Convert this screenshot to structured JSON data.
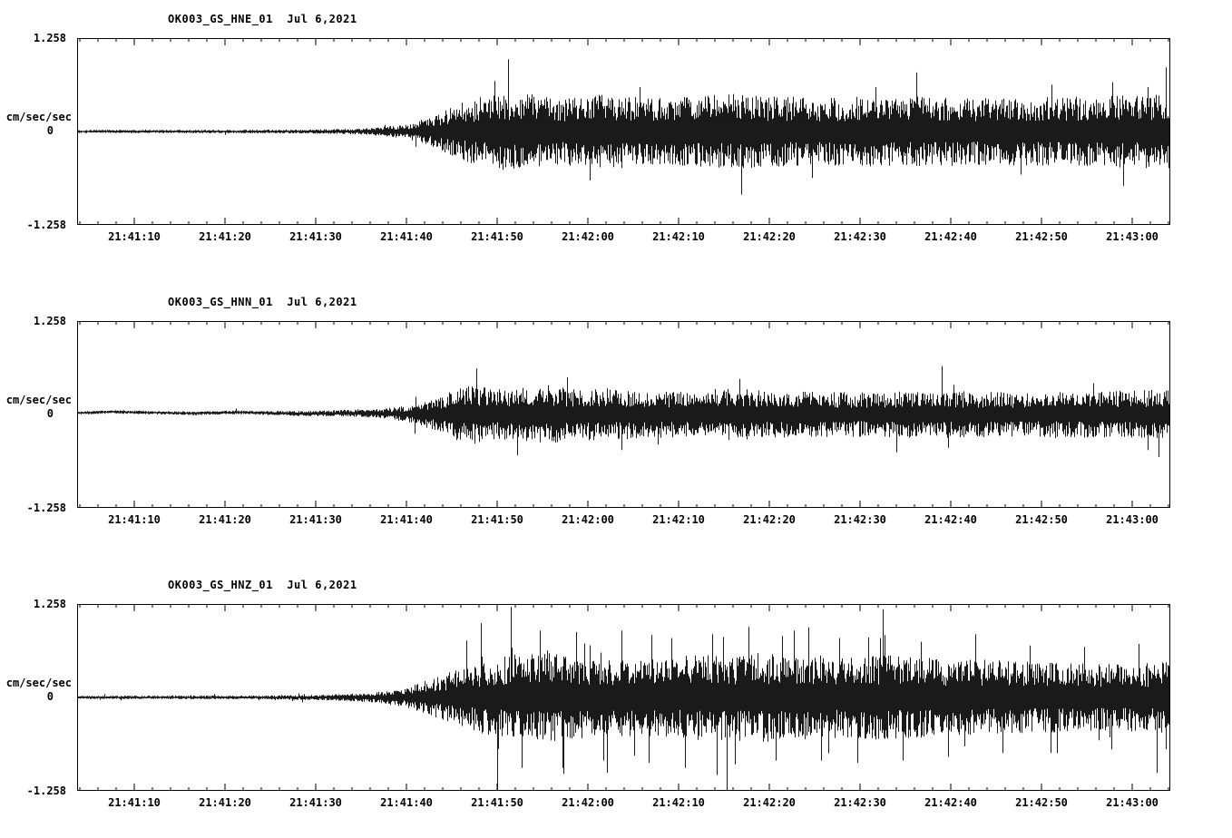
{
  "page": {
    "background": "#ffffff",
    "trace_color": "#000000",
    "frame_color": "#000000"
  },
  "chart_data": [
    {
      "type": "line",
      "title": "OK003_GS_HNE_01  Jul 6,2021",
      "station": "OK003",
      "network": "GS",
      "channel": "HNE",
      "date": "Jul 6,2021",
      "ylabel": "cm/sec/sec",
      "ylim": [
        -1.258,
        1.258
      ],
      "ytick_labels": [
        "1.258",
        "0",
        "-1.258"
      ],
      "x_span_seconds": 120.5,
      "xtick_labels": [
        "21:41:10",
        "21:41:20",
        "21:41:30",
        "21:41:40",
        "21:41:50",
        "21:42:00",
        "21:42:10",
        "21:42:20",
        "21:42:30",
        "21:42:40",
        "21:42:50",
        "21:43:00"
      ],
      "xtick_times_s": [
        6.3,
        16.3,
        26.3,
        36.3,
        46.3,
        56.3,
        66.3,
        76.3,
        86.3,
        96.3,
        106.3,
        116.3
      ],
      "minor_tick_interval_s": 2,
      "grid": false,
      "legend": "none",
      "envelope": [
        [
          0,
          0.022
        ],
        [
          25,
          0.025
        ],
        [
          32,
          0.045
        ],
        [
          36,
          0.09
        ],
        [
          39,
          0.2
        ],
        [
          42,
          0.38
        ],
        [
          45,
          0.48
        ],
        [
          49,
          0.52
        ],
        [
          53,
          0.45
        ],
        [
          58,
          0.5
        ],
        [
          63,
          0.45
        ],
        [
          68,
          0.48
        ],
        [
          72,
          0.52
        ],
        [
          75,
          0.48
        ],
        [
          82,
          0.46
        ],
        [
          90,
          0.48
        ],
        [
          100,
          0.45
        ],
        [
          110,
          0.47
        ],
        [
          120.5,
          0.5
        ]
      ],
      "spikes": [
        [
          46,
          0.68
        ],
        [
          56.5,
          0.66
        ],
        [
          62,
          0.6
        ],
        [
          73.2,
          0.85
        ],
        [
          88,
          0.6
        ],
        [
          104,
          0.58
        ],
        [
          118,
          0.6
        ]
      ],
      "drift": [
        [
          0,
          0
        ],
        [
          120.5,
          0
        ]
      ],
      "spike_prob": 0.012,
      "seed": 101
    },
    {
      "type": "line",
      "title": "OK003_GS_HNN_01  Jul 6,2021",
      "station": "OK003",
      "network": "GS",
      "channel": "HNN",
      "date": "Jul 6,2021",
      "ylabel": "cm/sec/sec",
      "ylim": [
        -1.258,
        1.258
      ],
      "ytick_labels": [
        "1.258",
        "0",
        "-1.258"
      ],
      "x_span_seconds": 120.5,
      "xtick_labels": [
        "21:41:10",
        "21:41:20",
        "21:41:30",
        "21:41:40",
        "21:41:50",
        "21:42:00",
        "21:42:10",
        "21:42:20",
        "21:42:30",
        "21:42:40",
        "21:42:50",
        "21:43:00"
      ],
      "xtick_times_s": [
        6.3,
        16.3,
        26.3,
        36.3,
        46.3,
        56.3,
        66.3,
        76.3,
        86.3,
        96.3,
        106.3,
        116.3
      ],
      "minor_tick_interval_s": 2,
      "grid": false,
      "legend": "none",
      "envelope": [
        [
          0,
          0.022
        ],
        [
          18,
          0.025
        ],
        [
          28,
          0.04
        ],
        [
          33,
          0.06
        ],
        [
          37,
          0.12
        ],
        [
          40,
          0.25
        ],
        [
          42,
          0.36
        ],
        [
          44,
          0.4
        ],
        [
          46,
          0.34
        ],
        [
          49,
          0.36
        ],
        [
          52,
          0.4
        ],
        [
          55,
          0.34
        ],
        [
          58,
          0.36
        ],
        [
          62,
          0.32
        ],
        [
          68,
          0.32
        ],
        [
          72,
          0.36
        ],
        [
          76,
          0.32
        ],
        [
          85,
          0.3
        ],
        [
          95,
          0.32
        ],
        [
          105,
          0.3
        ],
        [
          115,
          0.32
        ],
        [
          120.5,
          0.34
        ]
      ],
      "spikes": [
        [
          44,
          0.62
        ],
        [
          48.5,
          0.55
        ],
        [
          54,
          0.5
        ],
        [
          60,
          0.48
        ],
        [
          73,
          0.48
        ],
        [
          96,
          0.45
        ],
        [
          112,
          0.42
        ],
        [
          118,
          0.48
        ]
      ],
      "drift": [
        [
          0,
          0.02
        ],
        [
          4,
          0.035
        ],
        [
          8,
          0.025
        ],
        [
          13,
          0.015
        ],
        [
          18,
          0.03
        ],
        [
          24,
          0.01
        ],
        [
          30,
          0.018
        ],
        [
          36,
          0.008
        ],
        [
          42,
          0
        ],
        [
          120.5,
          0
        ]
      ],
      "spike_prob": 0.01,
      "seed": 202
    },
    {
      "type": "line",
      "title": "OK003_GS_HNZ_01  Jul 6,2021",
      "station": "OK003",
      "network": "GS",
      "channel": "HNZ",
      "date": "Jul 6,2021",
      "ylabel": "cm/sec/sec",
      "ylim": [
        -1.258,
        1.258
      ],
      "ytick_labels": [
        "1.258",
        "0",
        "-1.258"
      ],
      "x_span_seconds": 120.5,
      "xtick_labels": [
        "21:41:10",
        "21:41:20",
        "21:41:30",
        "21:41:40",
        "21:41:50",
        "21:42:00",
        "21:42:10",
        "21:42:20",
        "21:42:30",
        "21:42:40",
        "21:42:50",
        "21:43:00"
      ],
      "xtick_times_s": [
        6.3,
        16.3,
        26.3,
        36.3,
        46.3,
        56.3,
        66.3,
        76.3,
        86.3,
        96.3,
        106.3,
        116.3
      ],
      "minor_tick_interval_s": 2,
      "grid": false,
      "legend": "none",
      "envelope": [
        [
          0,
          0.022
        ],
        [
          20,
          0.025
        ],
        [
          28,
          0.04
        ],
        [
          33,
          0.07
        ],
        [
          36,
          0.13
        ],
        [
          39,
          0.25
        ],
        [
          42,
          0.38
        ],
        [
          45,
          0.5
        ],
        [
          48,
          0.58
        ],
        [
          52,
          0.6
        ],
        [
          56,
          0.55
        ],
        [
          60,
          0.52
        ],
        [
          65,
          0.55
        ],
        [
          70,
          0.58
        ],
        [
          75,
          0.6
        ],
        [
          80,
          0.58
        ],
        [
          85,
          0.55
        ],
        [
          90,
          0.58
        ],
        [
          95,
          0.52
        ],
        [
          100,
          0.52
        ],
        [
          105,
          0.48
        ],
        [
          110,
          0.46
        ],
        [
          115,
          0.46
        ],
        [
          120.5,
          0.48
        ]
      ],
      "spikes": [
        [
          44.5,
          1.0
        ],
        [
          46.3,
          1.258
        ],
        [
          47.8,
          1.22
        ],
        [
          49,
          0.95
        ],
        [
          51,
          0.9
        ],
        [
          53.5,
          0.95
        ],
        [
          55,
          0.88
        ],
        [
          58,
          0.85
        ],
        [
          60,
          0.9
        ],
        [
          63,
          0.88
        ],
        [
          65.5,
          0.8
        ],
        [
          67,
          0.95
        ],
        [
          70,
          0.85
        ],
        [
          72.5,
          0.9
        ],
        [
          74,
          0.95
        ],
        [
          77,
          0.85
        ],
        [
          79,
          0.9
        ],
        [
          82,
          0.85
        ],
        [
          84,
          0.8
        ],
        [
          86,
          0.88
        ],
        [
          88.5,
          0.8
        ],
        [
          91,
          0.85
        ],
        [
          93,
          0.75
        ],
        [
          96,
          0.8
        ],
        [
          99,
          0.85
        ],
        [
          102,
          0.75
        ],
        [
          105,
          0.7
        ],
        [
          108,
          0.75
        ],
        [
          111,
          0.68
        ],
        [
          114,
          0.7
        ],
        [
          117,
          0.72
        ],
        [
          120,
          0.7
        ]
      ],
      "drift": [
        [
          0,
          0
        ],
        [
          120.5,
          0
        ]
      ],
      "spike_prob": 0.04,
      "seed": 303
    }
  ]
}
